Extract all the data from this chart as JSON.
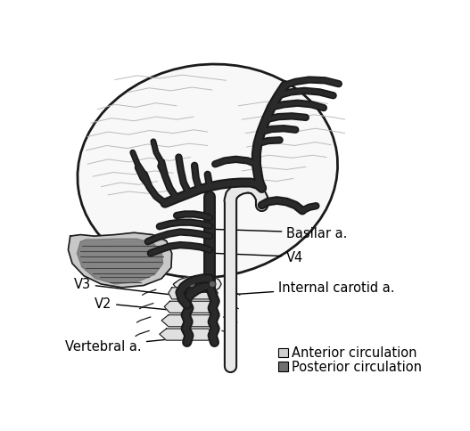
{
  "background_color": "#ffffff",
  "anterior_color": "#d0d0d0",
  "posterior_color": "#707070",
  "brain_fill": "#f8f8f8",
  "outline_color": "#1a1a1a",
  "dark_vessel": "#2a2a2a",
  "light_vessel_fill": "#e8e8e8",
  "gyri_color": "#bbbbbb",
  "cereb_light": "#c8c8c8",
  "cereb_dark": "#888888",
  "vertebra_fill": "#e0e0e0",
  "labels": {
    "basilar": "Basilar a.",
    "V4": "V4",
    "V3": "V3",
    "V2": "V2",
    "vertebral": "Vertebral a.",
    "internal_carotid": "Internal carotid a.",
    "anterior": "Anterior circulation",
    "posterior": "Posterior circulation"
  },
  "figsize": [
    5.27,
    4.85
  ],
  "dpi": 100
}
